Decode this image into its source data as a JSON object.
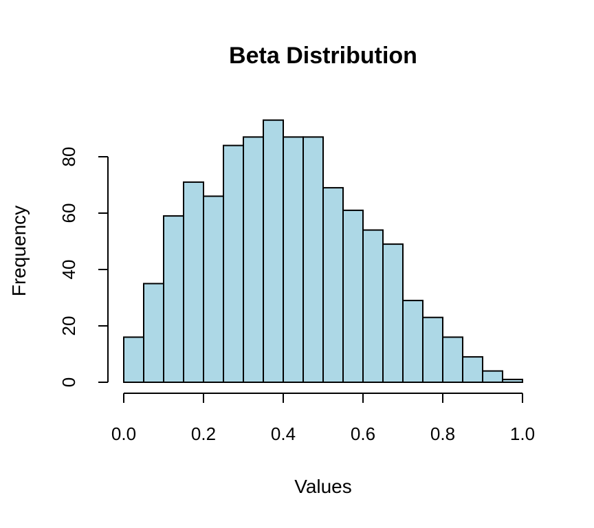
{
  "chart_data": {
    "type": "bar",
    "subtype": "histogram",
    "title": "Beta Distribution",
    "xlabel": "Values",
    "ylabel": "Frequency",
    "bin_edges": [
      0.0,
      0.05,
      0.1,
      0.15,
      0.2,
      0.25,
      0.3,
      0.35,
      0.4,
      0.45,
      0.5,
      0.55,
      0.6,
      0.65,
      0.7,
      0.75,
      0.8,
      0.85,
      0.9,
      0.95,
      1.0
    ],
    "values": [
      16,
      35,
      59,
      71,
      66,
      84,
      87,
      93,
      87,
      87,
      69,
      61,
      54,
      49,
      29,
      23,
      16,
      9,
      4,
      1
    ],
    "xlim": [
      0.0,
      1.0
    ],
    "ylim": [
      0,
      80
    ],
    "x_ticks": [
      0.0,
      0.2,
      0.4,
      0.6,
      0.8,
      1.0
    ],
    "x_tick_labels": [
      "0.0",
      "0.2",
      "0.4",
      "0.6",
      "0.8",
      "1.0"
    ],
    "y_ticks": [
      0,
      20,
      40,
      60,
      80
    ],
    "y_tick_labels": [
      "0",
      "20",
      "40",
      "60",
      "80"
    ],
    "bar_color": "#add8e6",
    "edge_color": "#000000",
    "grid": false,
    "legend": false
  }
}
